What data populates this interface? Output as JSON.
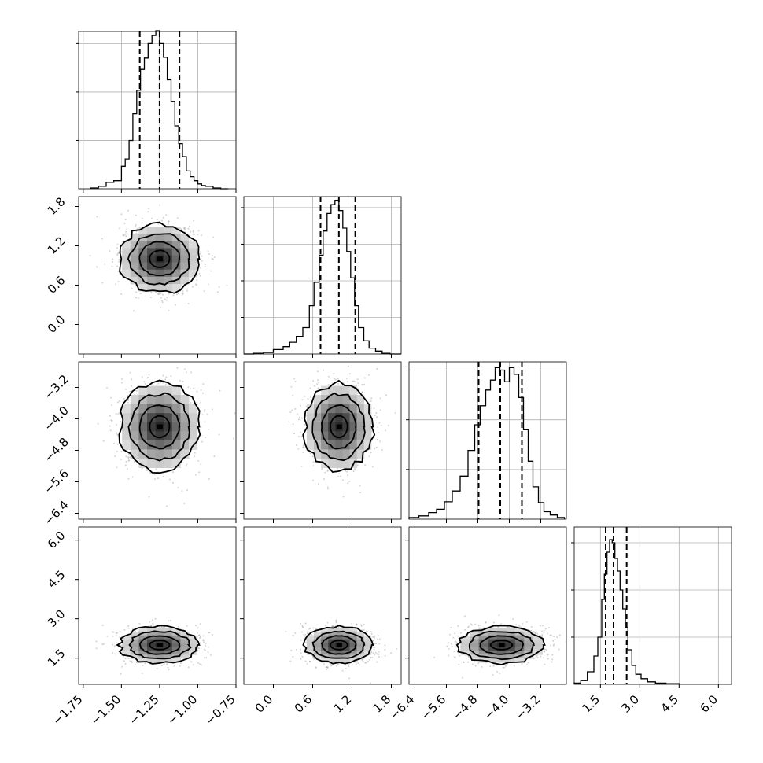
{
  "chart_data": {
    "type": "corner",
    "grid": true,
    "colors": {
      "lines": "#000000",
      "grid": "#b0b0b0",
      "points": "#808080"
    },
    "parameters": [
      {
        "index": 0,
        "range": [
          -1.78,
          -0.75
        ],
        "ticks": [
          -1.75,
          -1.5,
          -1.25,
          -1.0,
          -0.75
        ],
        "tick_labels": [
          "−1.75",
          "−1.50",
          "−1.25",
          "−1.00",
          "−0.75"
        ],
        "mean": -1.25,
        "sigma": 0.13,
        "quantiles": [
          -1.38,
          -1.25,
          -1.12
        ],
        "hist_max": 0.195,
        "hist_ticks": [
          0.06,
          0.12,
          0.18
        ],
        "histogram": {
          "edges": [
            -1.7,
            -1.65,
            -1.6,
            -1.55,
            -1.5,
            -1.475,
            -1.45,
            -1.425,
            -1.4,
            -1.375,
            -1.35,
            -1.325,
            -1.3,
            -1.275,
            -1.25,
            -1.225,
            -1.2,
            -1.175,
            -1.15,
            -1.125,
            -1.1,
            -1.075,
            -1.05,
            -1.025,
            -1.0,
            -0.975,
            -0.95,
            -0.9,
            -0.85,
            -0.8
          ],
          "counts": [
            0.001,
            0.003,
            0.008,
            0.01,
            0.028,
            0.037,
            0.06,
            0.093,
            0.122,
            0.148,
            0.162,
            0.18,
            0.19,
            0.196,
            0.18,
            0.163,
            0.135,
            0.108,
            0.078,
            0.056,
            0.04,
            0.022,
            0.015,
            0.01,
            0.006,
            0.004,
            0.003,
            0.001,
            0.0
          ]
        }
      },
      {
        "index": 1,
        "range": [
          -0.45,
          1.95
        ],
        "ticks": [
          0.0,
          0.6,
          1.2,
          1.8
        ],
        "tick_labels": [
          "0.0",
          "0.6",
          "1.2",
          "1.8"
        ],
        "mean": 1.0,
        "sigma": 0.26,
        "quantiles": [
          0.72,
          1.0,
          1.25
        ],
        "hist_max": 0.215,
        "hist_ticks": [
          0.05,
          0.1,
          0.15,
          0.2
        ],
        "histogram": {
          "edges": [
            -0.45,
            -0.3,
            -0.15,
            0.0,
            0.15,
            0.25,
            0.35,
            0.45,
            0.55,
            0.62,
            0.7,
            0.76,
            0.82,
            0.88,
            0.94,
            1.0,
            1.06,
            1.12,
            1.18,
            1.24,
            1.3,
            1.38,
            1.46,
            1.56,
            1.66,
            1.78,
            1.95
          ],
          "counts": [
            0.0,
            0.001,
            0.002,
            0.006,
            0.01,
            0.016,
            0.024,
            0.036,
            0.066,
            0.098,
            0.135,
            0.168,
            0.192,
            0.204,
            0.21,
            0.196,
            0.172,
            0.14,
            0.104,
            0.066,
            0.036,
            0.018,
            0.008,
            0.004,
            0.001,
            0.0
          ]
        }
      },
      {
        "index": 2,
        "range": [
          -6.55,
          -2.55
        ],
        "ticks": [
          -6.4,
          -5.6,
          -4.8,
          -4.0,
          -3.2
        ],
        "tick_labels": [
          "−6.4",
          "−5.6",
          "−4.8",
          "−4.0",
          "−3.2"
        ],
        "mean": -4.2,
        "sigma": 0.55,
        "quantiles": [
          -4.78,
          -4.23,
          -3.68
        ],
        "hist_max": 0.19,
        "hist_ticks": [
          0.06,
          0.12,
          0.18
        ],
        "histogram": {
          "edges": [
            -6.55,
            -6.3,
            -6.05,
            -5.85,
            -5.65,
            -5.45,
            -5.25,
            -5.05,
            -4.88,
            -4.74,
            -4.6,
            -4.48,
            -4.36,
            -4.24,
            -4.12,
            -4.0,
            -3.88,
            -3.76,
            -3.64,
            -3.52,
            -3.4,
            -3.26,
            -3.12,
            -2.96,
            -2.78,
            -2.6
          ],
          "counts": [
            0.002,
            0.004,
            0.008,
            0.012,
            0.021,
            0.034,
            0.052,
            0.083,
            0.114,
            0.137,
            0.156,
            0.168,
            0.183,
            0.18,
            0.166,
            0.183,
            0.175,
            0.147,
            0.108,
            0.07,
            0.039,
            0.02,
            0.009,
            0.005,
            0.002
          ]
        }
      },
      {
        "index": 3,
        "range": [
          0.5,
          6.5
        ],
        "ticks": [
          1.5,
          3.0,
          4.5,
          6.0
        ],
        "tick_labels": [
          "1.5",
          "3.0",
          "4.5",
          "6.0"
        ],
        "mean": 2.0,
        "sigma": 0.35,
        "quantiles": [
          1.7,
          2.0,
          2.5
        ],
        "hist_max": 0.5,
        "hist_ticks": [
          0.15,
          0.3,
          0.45
        ],
        "histogram": {
          "edges": [
            0.5,
            0.75,
            1.0,
            1.25,
            1.4,
            1.55,
            1.65,
            1.75,
            1.85,
            1.95,
            2.05,
            2.15,
            2.25,
            2.35,
            2.45,
            2.55,
            2.7,
            2.85,
            3.05,
            3.3,
            3.6,
            4.0,
            4.5
          ],
          "counts": [
            0.004,
            0.012,
            0.04,
            0.09,
            0.15,
            0.27,
            0.35,
            0.42,
            0.46,
            0.45,
            0.4,
            0.36,
            0.3,
            0.24,
            0.18,
            0.11,
            0.06,
            0.032,
            0.018,
            0.008,
            0.004,
            0.002
          ]
        }
      }
    ],
    "pairs": [
      {
        "x": 0,
        "y": 1,
        "correlation": 0.05
      },
      {
        "x": 0,
        "y": 2,
        "correlation": 0.0
      },
      {
        "x": 1,
        "y": 2,
        "correlation": -0.03
      },
      {
        "x": 0,
        "y": 3,
        "correlation": 0.0
      },
      {
        "x": 1,
        "y": 3,
        "correlation": 0.0
      },
      {
        "x": 2,
        "y": 3,
        "correlation": 0.0
      }
    ]
  }
}
